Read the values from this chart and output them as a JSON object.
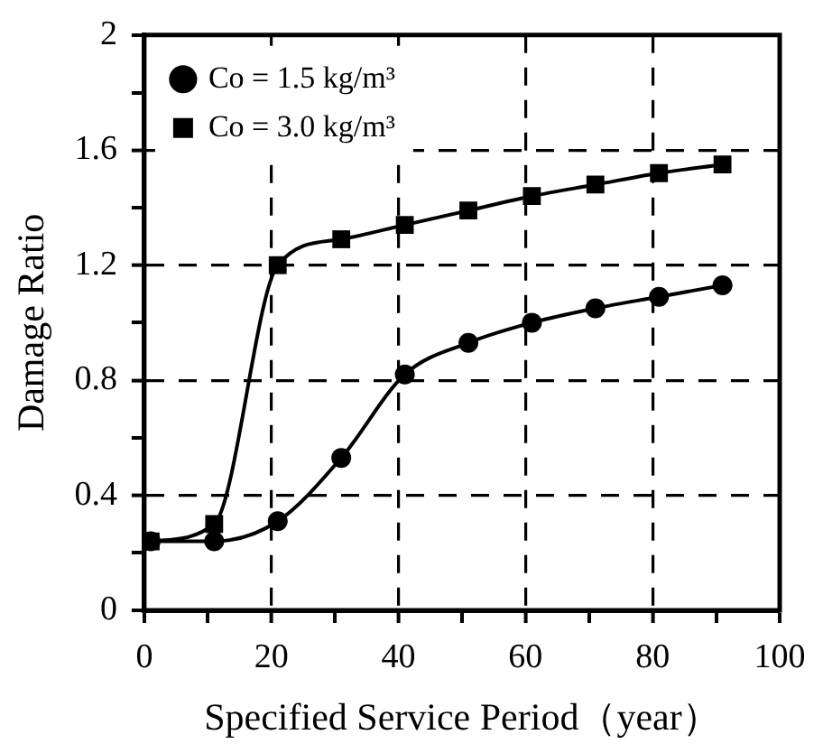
{
  "chart_data": {
    "type": "line",
    "xlabel": "Specified Service Period（year）",
    "ylabel": "Damage Ratio",
    "xlim": [
      0,
      100
    ],
    "ylim": [
      0,
      2
    ],
    "xticks": [
      0,
      {
        "value": 10,
        "label": null
      },
      20,
      {
        "value": 30,
        "label": null
      },
      40,
      {
        "value": 50,
        "label": null
      },
      60,
      {
        "value": 70,
        "label": null
      },
      80,
      {
        "value": 90,
        "label": null
      },
      100
    ],
    "yticks": [
      0,
      {
        "value": 0.2,
        "label": null
      },
      0.4,
      {
        "value": 0.6,
        "label": null
      },
      0.8,
      {
        "value": 1,
        "label": null
      },
      1.2,
      {
        "value": 1.4,
        "label": null
      },
      1.6,
      {
        "value": 1.8,
        "label": null
      },
      2
    ],
    "grid": true,
    "legend": "top left",
    "line_style": "solid",
    "series": [
      {
        "name": "Co = 1.5 kg/m³",
        "color": "#000000",
        "marker": "circle",
        "x": [
          1,
          11,
          21,
          31,
          41,
          51,
          61,
          71,
          81,
          91
        ],
        "values": [
          0.24,
          0.24,
          0.31,
          0.53,
          0.82,
          0.93,
          1.0,
          1.05,
          1.09,
          1.13
        ]
      },
      {
        "name": "Co = 3.0 kg/m³",
        "color": "#000000",
        "marker": "square",
        "x": [
          1,
          11,
          21,
          31,
          41,
          51,
          61,
          71,
          81,
          91
        ],
        "values": [
          0.24,
          0.3,
          1.2,
          1.29,
          1.34,
          1.39,
          1.44,
          1.48,
          1.52,
          1.55
        ]
      }
    ]
  }
}
